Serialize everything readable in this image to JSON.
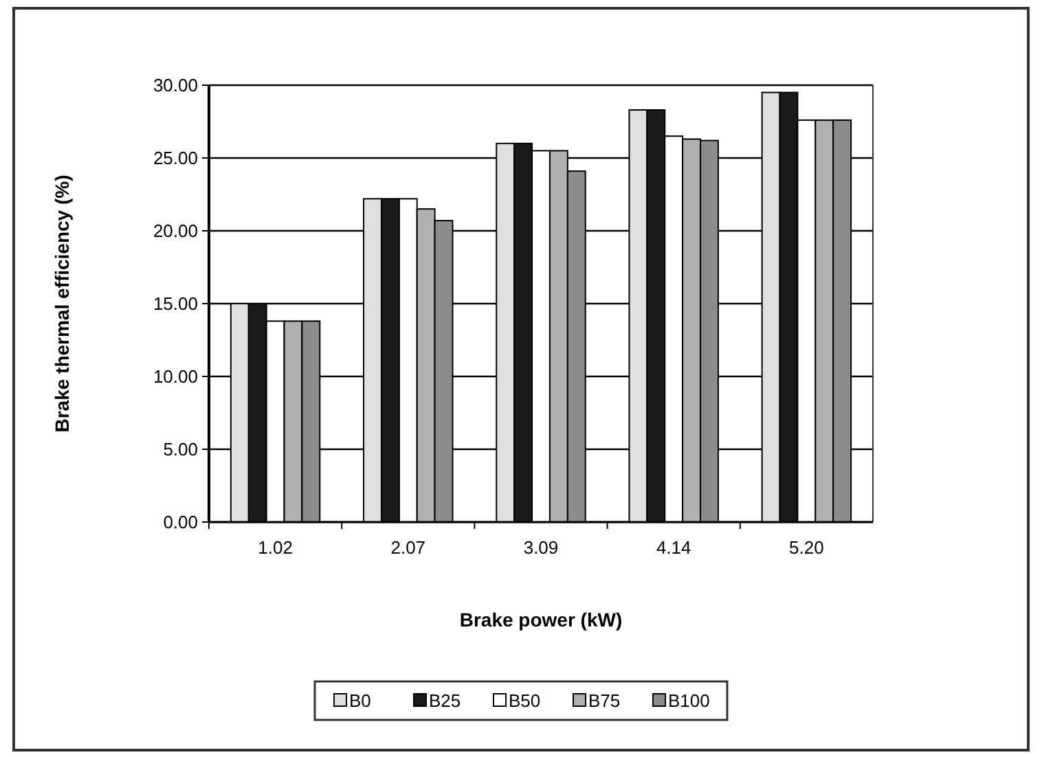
{
  "chart_data": {
    "type": "bar",
    "xlabel": "Brake power (kW)",
    "ylabel": "Brake thermal efficiency (%)",
    "categories": [
      "1.02",
      "2.07",
      "3.09",
      "4.14",
      "5.20"
    ],
    "series": [
      {
        "name": "B0",
        "color": "#e0e0e0",
        "values": [
          15.0,
          22.2,
          26.0,
          28.3,
          29.5
        ]
      },
      {
        "name": "B25",
        "color": "#1a1a1a",
        "values": [
          15.0,
          22.2,
          26.0,
          28.3,
          29.5
        ]
      },
      {
        "name": "B50",
        "color": "#ffffff",
        "values": [
          13.8,
          22.2,
          25.5,
          26.5,
          27.6
        ]
      },
      {
        "name": "B75",
        "color": "#b0b0b0",
        "values": [
          13.8,
          21.5,
          25.5,
          26.3,
          27.6
        ]
      },
      {
        "name": "B100",
        "color": "#8c8c8c",
        "values": [
          13.8,
          20.7,
          24.1,
          26.2,
          27.6
        ]
      }
    ],
    "ylim": [
      0,
      30
    ],
    "yticks": [
      {
        "value": 0,
        "label": "0.00"
      },
      {
        "value": 5,
        "label": "5.00"
      },
      {
        "value": 10,
        "label": "10.00"
      },
      {
        "value": 15,
        "label": "15.00"
      },
      {
        "value": 20,
        "label": "20.00"
      },
      {
        "value": 25,
        "label": "25.00"
      },
      {
        "value": 30,
        "label": "30.00"
      }
    ],
    "grid": "y",
    "legend": "bottom"
  }
}
